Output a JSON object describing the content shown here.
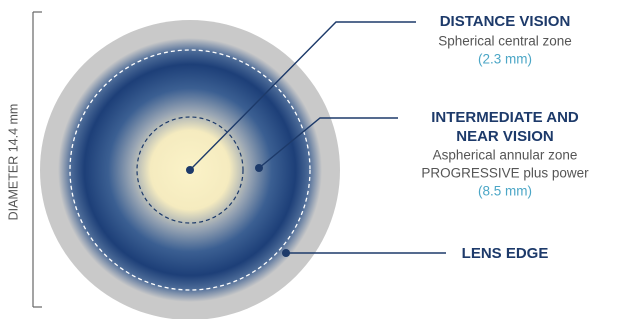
{
  "diameter_label": "DIAMETER 14.4 mm",
  "callouts": [
    {
      "title": [
        "DISTANCE VISION"
      ],
      "description": [
        "Spherical central zone"
      ],
      "measure": "(2.3 mm)"
    },
    {
      "title": [
        "INTERMEDIATE AND",
        "NEAR VISION"
      ],
      "description": [
        "Aspherical annular zone",
        "PROGRESSIVE plus power"
      ],
      "measure": "(8.5 mm)"
    },
    {
      "title": [
        "LENS EDGE"
      ]
    }
  ]
}
